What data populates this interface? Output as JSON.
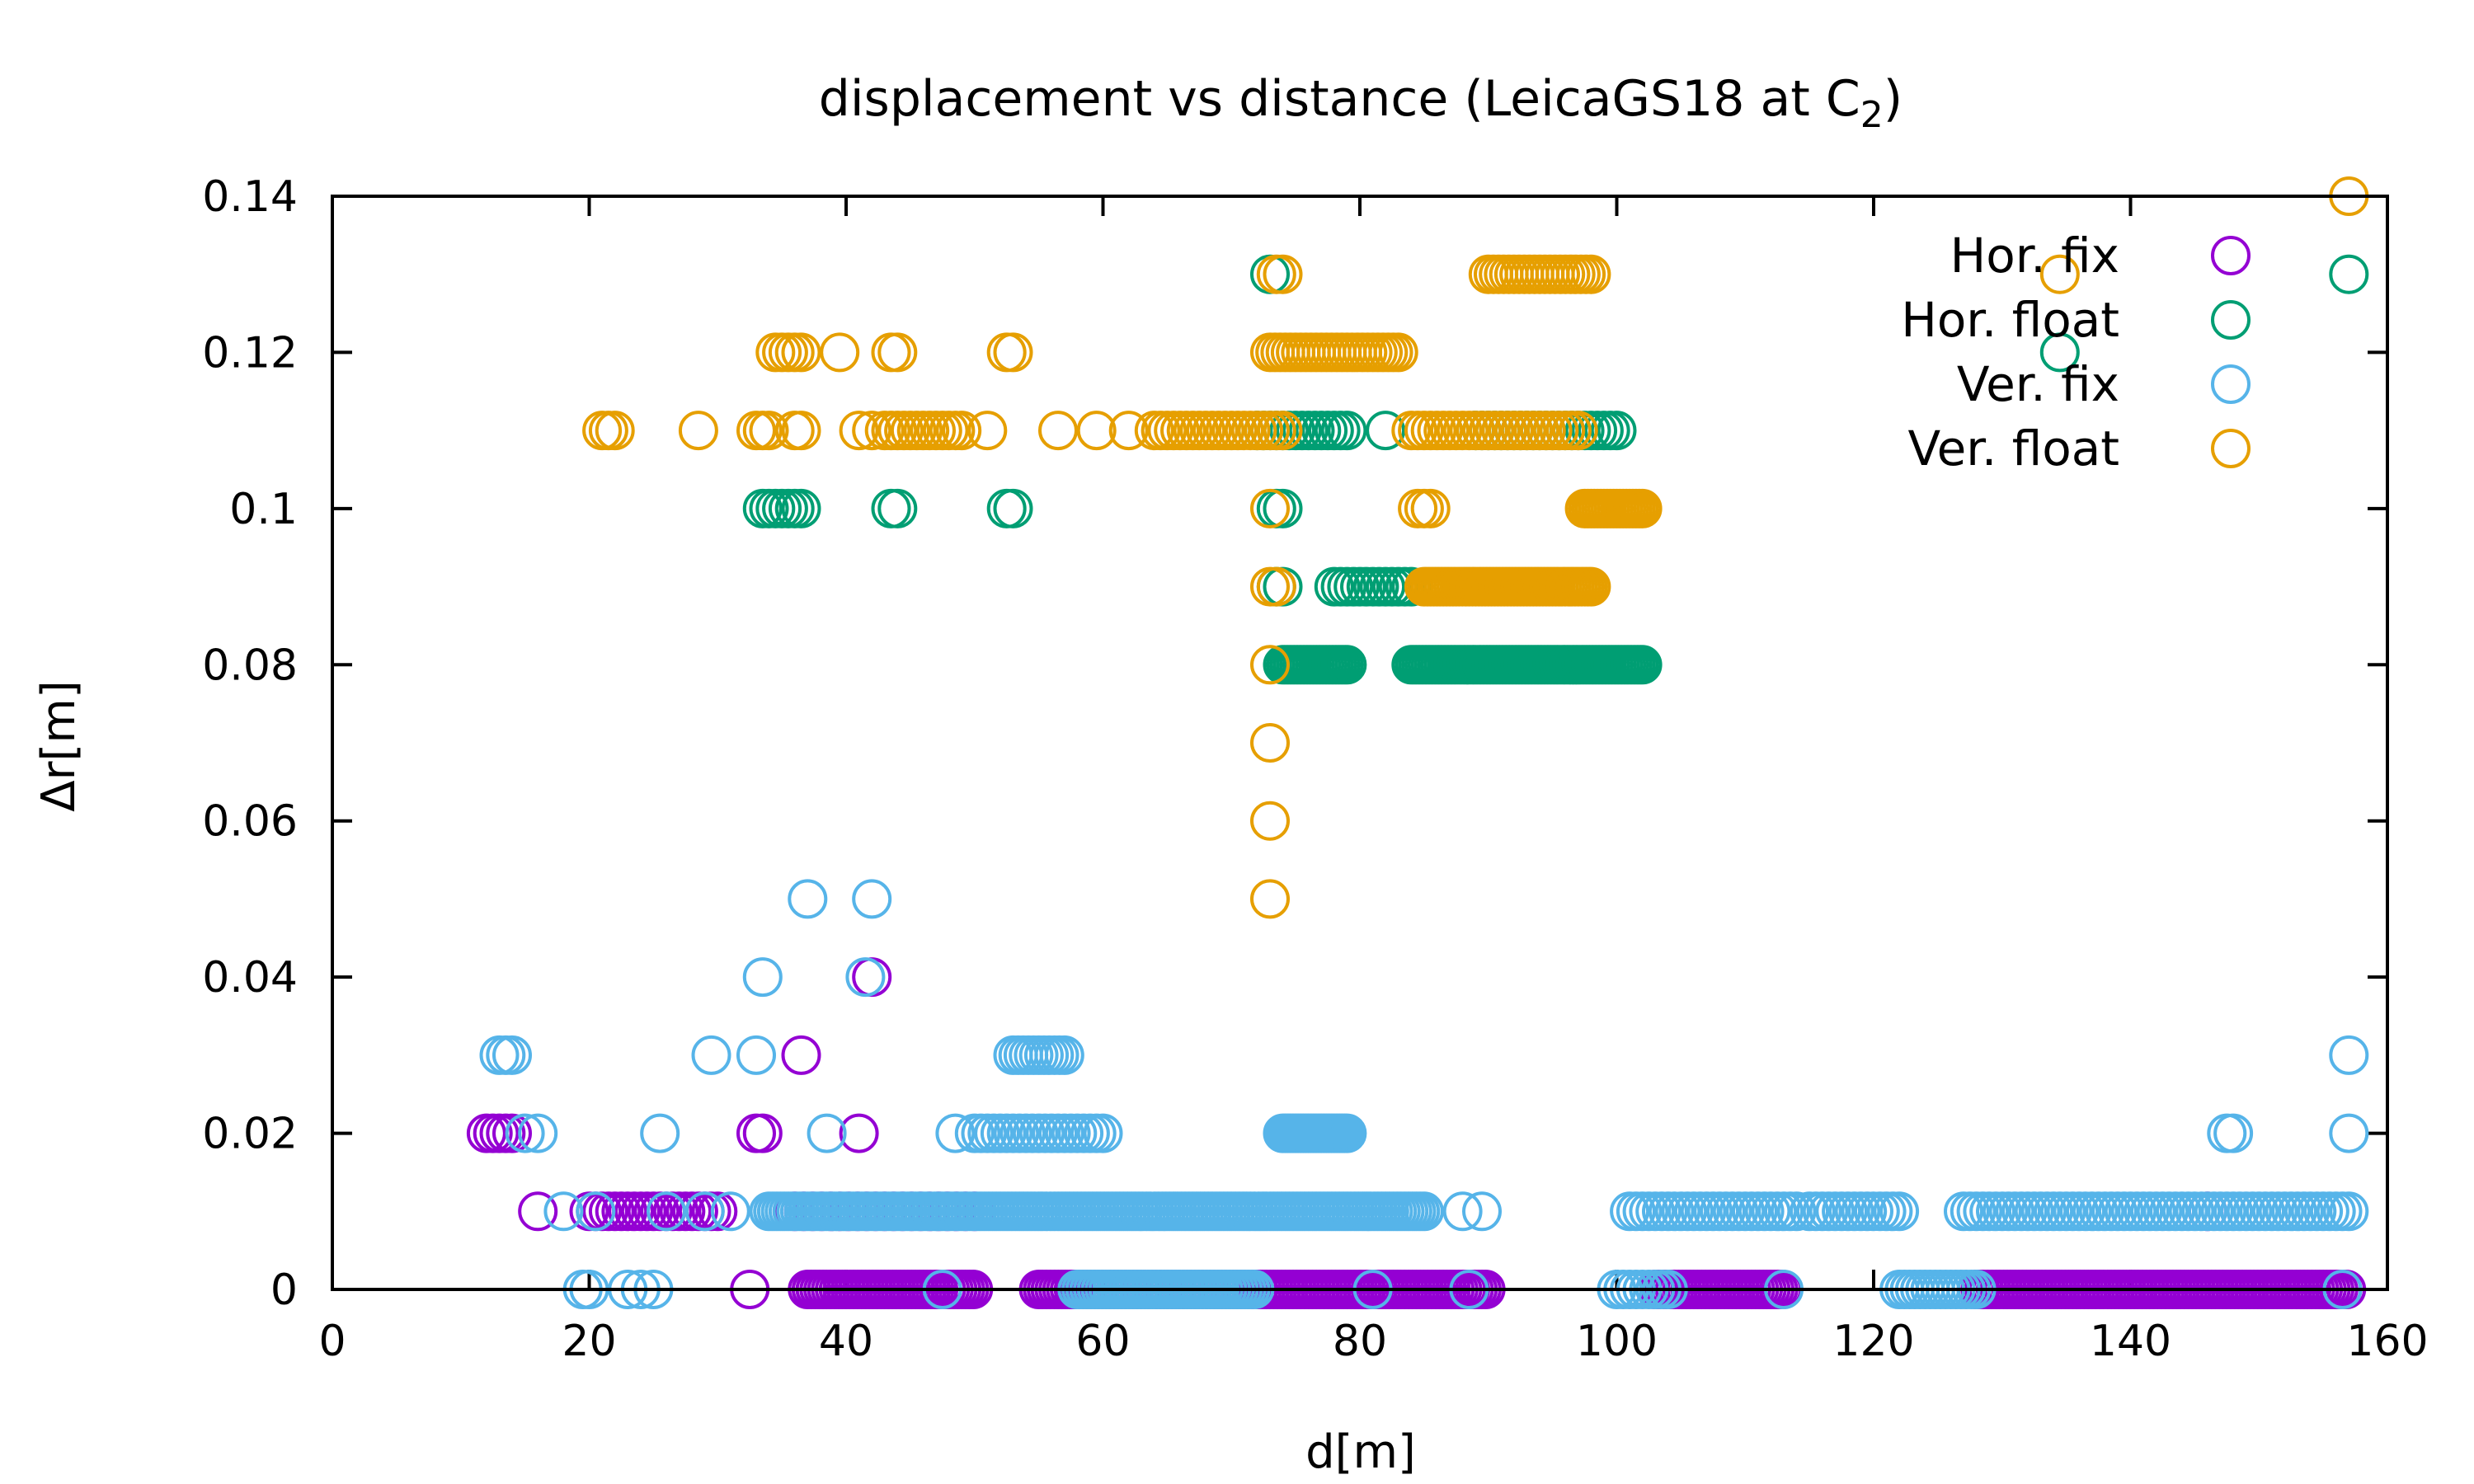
{
  "chart_data": {
    "type": "scatter",
    "title": "displacement vs distance (LeicaGS18 at C",
    "title_subscript": "2",
    "title_suffix": ")",
    "xlabel": "d[m]",
    "ylabel": "Δr[m]",
    "xlim": [
      0,
      160
    ],
    "ylim": [
      0,
      0.14
    ],
    "x_ticks": [
      "0",
      "20",
      "40",
      "60",
      "80",
      "100",
      "120",
      "140",
      "160"
    ],
    "y_ticks": [
      "0",
      "0.02",
      "0.04",
      "0.06",
      "0.08",
      "0.1",
      "0.12",
      "0.14"
    ],
    "grid": false,
    "legend_position": "top-right",
    "marker": "open-circle",
    "series": [
      {
        "name": "Hor. fix",
        "color": "#9400d3",
        "segments": [
          {
            "y": 0,
            "x_start": 37,
            "x_end": 50,
            "step": 0.3
          },
          {
            "y": 0,
            "x_start": 55,
            "x_end": 90,
            "step": 0.3
          },
          {
            "y": 0,
            "x_start": 103,
            "x_end": 113,
            "step": 0.3
          },
          {
            "y": 0,
            "x_start": 128,
            "x_end": 157,
            "step": 0.3
          },
          {
            "y": 0.01,
            "x_start": 20,
            "x_end": 30,
            "step": 0.5
          },
          {
            "y": 0.01,
            "x_start": 36,
            "x_end": 50,
            "step": 0.7
          }
        ],
        "points": [
          {
            "x": 32.5,
            "y": 0
          },
          {
            "x": 16,
            "y": 0.01
          },
          {
            "x": 146,
            "y": 0.01
          },
          {
            "x": 12,
            "y": 0.02
          },
          {
            "x": 12.5,
            "y": 0.02
          },
          {
            "x": 13,
            "y": 0.02
          },
          {
            "x": 13.5,
            "y": 0.02
          },
          {
            "x": 14,
            "y": 0.02
          },
          {
            "x": 33,
            "y": 0.02
          },
          {
            "x": 33.5,
            "y": 0.02
          },
          {
            "x": 41,
            "y": 0.02
          },
          {
            "x": 36.5,
            "y": 0.03
          },
          {
            "x": 42,
            "y": 0.04
          }
        ]
      },
      {
        "name": "Hor. float",
        "color": "#009e73",
        "segments": [
          {
            "y": 0.08,
            "x_start": 74,
            "x_end": 79,
            "step": 0.25
          },
          {
            "y": 0.08,
            "x_start": 84,
            "x_end": 102,
            "step": 0.25
          },
          {
            "y": 0.09,
            "x_start": 78,
            "x_end": 84,
            "step": 0.5
          },
          {
            "y": 0.11,
            "x_start": 72,
            "x_end": 79,
            "step": 0.5
          },
          {
            "y": 0.11,
            "x_start": 89,
            "x_end": 100,
            "step": 0.5
          }
        ],
        "points": [
          {
            "x": 73.5,
            "y": 0.09
          },
          {
            "x": 74,
            "y": 0.09
          },
          {
            "x": 73.5,
            "y": 0.1
          },
          {
            "x": 74,
            "y": 0.1
          },
          {
            "x": 33.5,
            "y": 0.1
          },
          {
            "x": 34,
            "y": 0.1
          },
          {
            "x": 34.5,
            "y": 0.1
          },
          {
            "x": 35,
            "y": 0.1
          },
          {
            "x": 35.5,
            "y": 0.1
          },
          {
            "x": 36,
            "y": 0.1
          },
          {
            "x": 36.5,
            "y": 0.1
          },
          {
            "x": 43.5,
            "y": 0.1
          },
          {
            "x": 44,
            "y": 0.1
          },
          {
            "x": 52.5,
            "y": 0.1
          },
          {
            "x": 53,
            "y": 0.1
          },
          {
            "x": 82,
            "y": 0.11
          },
          {
            "x": 134.5,
            "y": 0.12
          },
          {
            "x": 73,
            "y": 0.13
          },
          {
            "x": 157,
            "y": 0.13
          }
        ]
      },
      {
        "name": "Ver. fix",
        "color": "#56b4e9",
        "segments": [
          {
            "y": 0,
            "x_start": 58,
            "x_end": 72,
            "step": 0.3
          },
          {
            "y": 0,
            "x_start": 100,
            "x_end": 104,
            "step": 0.5
          },
          {
            "y": 0,
            "x_start": 122,
            "x_end": 128,
            "step": 0.4
          },
          {
            "y": 0.01,
            "x_start": 34,
            "x_end": 85,
            "step": 0.3
          },
          {
            "y": 0.01,
            "x_start": 101,
            "x_end": 114,
            "step": 0.5
          },
          {
            "y": 0.01,
            "x_start": 115,
            "x_end": 122,
            "step": 0.5
          },
          {
            "y": 0.01,
            "x_start": 127,
            "x_end": 157,
            "step": 0.5
          },
          {
            "y": 0.02,
            "x_start": 74,
            "x_end": 79,
            "step": 0.2
          },
          {
            "y": 0.02,
            "x_start": 50,
            "x_end": 60,
            "step": 0.5
          },
          {
            "y": 0.03,
            "x_start": 53,
            "x_end": 57,
            "step": 0.4
          }
        ],
        "points": [
          {
            "x": 19.5,
            "y": 0
          },
          {
            "x": 20,
            "y": 0
          },
          {
            "x": 23,
            "y": 0
          },
          {
            "x": 24,
            "y": 0
          },
          {
            "x": 25,
            "y": 0
          },
          {
            "x": 47.5,
            "y": 0
          },
          {
            "x": 81,
            "y": 0
          },
          {
            "x": 88.5,
            "y": 0
          },
          {
            "x": 113,
            "y": 0
          },
          {
            "x": 156.5,
            "y": 0
          },
          {
            "x": 18,
            "y": 0.01
          },
          {
            "x": 20.5,
            "y": 0.01
          },
          {
            "x": 26,
            "y": 0.01
          },
          {
            "x": 29,
            "y": 0.01
          },
          {
            "x": 31,
            "y": 0.01
          },
          {
            "x": 88,
            "y": 0.01
          },
          {
            "x": 89.5,
            "y": 0.01
          },
          {
            "x": 15,
            "y": 0.02
          },
          {
            "x": 16,
            "y": 0.02
          },
          {
            "x": 25.5,
            "y": 0.02
          },
          {
            "x": 38.5,
            "y": 0.02
          },
          {
            "x": 48.5,
            "y": 0.02
          },
          {
            "x": 147.5,
            "y": 0.02
          },
          {
            "x": 148,
            "y": 0.02
          },
          {
            "x": 157,
            "y": 0.02
          },
          {
            "x": 13,
            "y": 0.03
          },
          {
            "x": 13.5,
            "y": 0.03
          },
          {
            "x": 14,
            "y": 0.03
          },
          {
            "x": 29.5,
            "y": 0.03
          },
          {
            "x": 33,
            "y": 0.03
          },
          {
            "x": 157,
            "y": 0.03
          },
          {
            "x": 33.5,
            "y": 0.04
          },
          {
            "x": 41.5,
            "y": 0.04
          },
          {
            "x": 37,
            "y": 0.05
          },
          {
            "x": 42,
            "y": 0.05
          }
        ]
      },
      {
        "name": "Ver. float",
        "color": "#e69f00",
        "segments": [
          {
            "y": 0.09,
            "x_start": 85,
            "x_end": 98,
            "step": 0.25
          },
          {
            "y": 0.1,
            "x_start": 97.5,
            "x_end": 102,
            "step": 0.25
          },
          {
            "y": 0.11,
            "x_start": 43,
            "x_end": 49,
            "step": 0.5
          },
          {
            "y": 0.11,
            "x_start": 64,
            "x_end": 74,
            "step": 0.5
          },
          {
            "y": 0.11,
            "x_start": 84,
            "x_end": 97,
            "step": 0.5
          },
          {
            "y": 0.12,
            "x_start": 73,
            "x_end": 83,
            "step": 0.4
          },
          {
            "y": 0.13,
            "x_start": 90,
            "x_end": 98,
            "step": 0.4
          }
        ],
        "points": [
          {
            "x": 73,
            "y": 0.05
          },
          {
            "x": 73,
            "y": 0.06
          },
          {
            "x": 73,
            "y": 0.07
          },
          {
            "x": 73,
            "y": 0.08
          },
          {
            "x": 73,
            "y": 0.09
          },
          {
            "x": 73.5,
            "y": 0.09
          },
          {
            "x": 73,
            "y": 0.1
          },
          {
            "x": 84.5,
            "y": 0.1
          },
          {
            "x": 85,
            "y": 0.1
          },
          {
            "x": 85.5,
            "y": 0.1
          },
          {
            "x": 21,
            "y": 0.11
          },
          {
            "x": 21.5,
            "y": 0.11
          },
          {
            "x": 22,
            "y": 0.11
          },
          {
            "x": 28.5,
            "y": 0.11
          },
          {
            "x": 33,
            "y": 0.11
          },
          {
            "x": 33.5,
            "y": 0.11
          },
          {
            "x": 34,
            "y": 0.11
          },
          {
            "x": 36,
            "y": 0.11
          },
          {
            "x": 36.5,
            "y": 0.11
          },
          {
            "x": 41,
            "y": 0.11
          },
          {
            "x": 42,
            "y": 0.11
          },
          {
            "x": 51,
            "y": 0.11
          },
          {
            "x": 56.5,
            "y": 0.11
          },
          {
            "x": 59.5,
            "y": 0.11
          },
          {
            "x": 62,
            "y": 0.11
          },
          {
            "x": 34.5,
            "y": 0.12
          },
          {
            "x": 35,
            "y": 0.12
          },
          {
            "x": 35.5,
            "y": 0.12
          },
          {
            "x": 36,
            "y": 0.12
          },
          {
            "x": 36.5,
            "y": 0.12
          },
          {
            "x": 39.5,
            "y": 0.12
          },
          {
            "x": 43.5,
            "y": 0.12
          },
          {
            "x": 44,
            "y": 0.12
          },
          {
            "x": 52.5,
            "y": 0.12
          },
          {
            "x": 53,
            "y": 0.12
          },
          {
            "x": 73.5,
            "y": 0.13
          },
          {
            "x": 74,
            "y": 0.13
          },
          {
            "x": 134.5,
            "y": 0.13
          },
          {
            "x": 157,
            "y": 0.14
          }
        ]
      }
    ]
  }
}
